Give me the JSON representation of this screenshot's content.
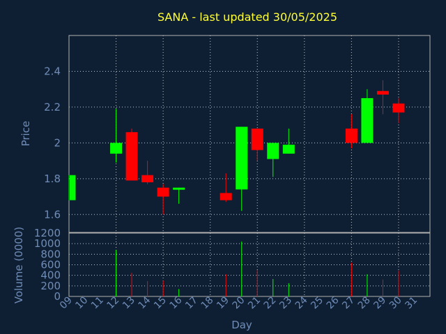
{
  "chart_data": [
    {
      "type": "candlestick",
      "title": "SANA - last updated 30/05/2025",
      "ylabel": "Price",
      "ylim": [
        1.5,
        2.6
      ],
      "yticks": [
        1.6,
        1.8,
        2,
        2.2,
        2.4
      ],
      "ytick_labels": [
        "1.6",
        "1.8",
        "2",
        "2.2",
        "2.4"
      ],
      "grid": true,
      "days": [
        "09",
        "10",
        "11",
        "12",
        "13",
        "14",
        "15",
        "16",
        "17",
        "18",
        "19",
        "20",
        "21",
        "22",
        "23",
        "24",
        "25",
        "26",
        "27",
        "28",
        "29",
        "30",
        "31"
      ],
      "candles": [
        {
          "day": "09",
          "open": 1.68,
          "high": 1.82,
          "low": 1.68,
          "close": 1.82
        },
        {
          "day": "12",
          "open": 1.94,
          "high": 2.19,
          "low": 1.89,
          "close": 2.0
        },
        {
          "day": "13",
          "open": 2.06,
          "high": 2.08,
          "low": 1.79,
          "close": 1.79
        },
        {
          "day": "14",
          "open": 1.82,
          "high": 1.9,
          "low": 1.77,
          "close": 1.78
        },
        {
          "day": "15",
          "open": 1.75,
          "high": 1.77,
          "low": 1.6,
          "close": 1.7
        },
        {
          "day": "16",
          "open": 1.74,
          "high": 1.75,
          "low": 1.66,
          "close": 1.75
        },
        {
          "day": "19",
          "open": 1.72,
          "high": 1.83,
          "low": 1.67,
          "close": 1.68
        },
        {
          "day": "20",
          "open": 1.74,
          "high": 2.09,
          "low": 1.62,
          "close": 2.09
        },
        {
          "day": "21",
          "open": 2.08,
          "high": 2.08,
          "low": 1.9,
          "close": 1.96
        },
        {
          "day": "22",
          "open": 1.91,
          "high": 2.0,
          "low": 1.81,
          "close": 2.0
        },
        {
          "day": "23",
          "open": 1.94,
          "high": 2.08,
          "low": 1.94,
          "close": 1.99
        },
        {
          "day": "27",
          "open": 2.08,
          "high": 2.16,
          "low": 1.97,
          "close": 2.0
        },
        {
          "day": "28",
          "open": 2.0,
          "high": 2.3,
          "low": 2.0,
          "close": 2.25
        },
        {
          "day": "29",
          "open": 2.29,
          "high": 2.35,
          "low": 2.16,
          "close": 2.27
        },
        {
          "day": "30",
          "open": 2.22,
          "high": 2.25,
          "low": 2.11,
          "close": 2.17
        }
      ],
      "colors": {
        "up": "#00ff00",
        "down": "#ff0000",
        "title": "#ffff33",
        "axis_text": "#6f8db8",
        "background": "#0f1f33"
      }
    },
    {
      "type": "bar",
      "ylabel": "Volume (0000)",
      "xlabel": "Day",
      "ylim": [
        0,
        1200
      ],
      "yticks": [
        0,
        200,
        400,
        600,
        800,
        1000,
        1200
      ],
      "ytick_labels": [
        "0",
        "200",
        "400",
        "600",
        "800",
        "1000",
        "1200"
      ],
      "grid": true,
      "volumes": [
        {
          "day": "09",
          "value": 0,
          "direction": "up"
        },
        {
          "day": "12",
          "value": 880,
          "direction": "up"
        },
        {
          "day": "13",
          "value": 450,
          "direction": "down"
        },
        {
          "day": "14",
          "value": 290,
          "direction": "down"
        },
        {
          "day": "15",
          "value": 300,
          "direction": "down"
        },
        {
          "day": "16",
          "value": 140,
          "direction": "up"
        },
        {
          "day": "19",
          "value": 420,
          "direction": "down"
        },
        {
          "day": "20",
          "value": 1040,
          "direction": "up"
        },
        {
          "day": "21",
          "value": 500,
          "direction": "down"
        },
        {
          "day": "22",
          "value": 330,
          "direction": "up"
        },
        {
          "day": "23",
          "value": 250,
          "direction": "up"
        },
        {
          "day": "27",
          "value": 640,
          "direction": "down"
        },
        {
          "day": "28",
          "value": 420,
          "direction": "up"
        },
        {
          "day": "29",
          "value": 320,
          "direction": "down"
        },
        {
          "day": "30",
          "value": 490,
          "direction": "down"
        }
      ]
    }
  ]
}
